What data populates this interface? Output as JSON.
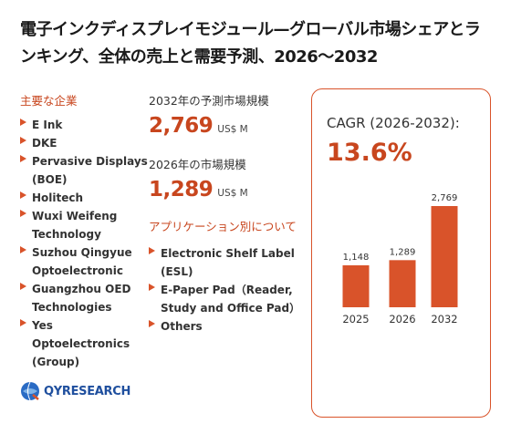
{
  "title": "電子インクディスプレイモジュール—グローバル市場シェアとランキング、全体の売上と需要予測、2026〜2032",
  "companies": {
    "heading": "主要な企業",
    "items": [
      "E Ink",
      "DKE",
      "Pervasive Displays (BOE)",
      "Holitech",
      "Wuxi Weifeng Technology",
      "Suzhou Qingyue Optoelectronic",
      "Guangzhou OED Technologies",
      "Yes Optoelectronics (Group)"
    ]
  },
  "market_2032": {
    "label": "2032年の予測市場規模",
    "value": "2,769",
    "unit": "US$ M"
  },
  "market_2026": {
    "label": "2026年の市場規模",
    "value": "1,289",
    "unit": "US$ M"
  },
  "applications": {
    "heading": "アプリケーション別について",
    "items": [
      "Electronic Shelf Label (ESL)",
      "E-Paper Pad（Reader, Study and Office Pad）",
      "Others"
    ]
  },
  "cagr": {
    "label": "CAGR (2026-2032):",
    "value": "13.6%"
  },
  "chart_data": {
    "type": "bar",
    "categories": [
      "2025",
      "2026",
      "2032"
    ],
    "values": [
      1148,
      1289,
      2769
    ],
    "value_labels": [
      "1,148",
      "1,289",
      "2,769"
    ],
    "ylim": [
      0,
      2769
    ],
    "bar_color": "#d9532a"
  },
  "logo": {
    "text": "QYRESEARCH"
  },
  "colors": {
    "accent": "#c8461e",
    "bar": "#d9532a",
    "logo_blue": "#1f4f9e"
  }
}
